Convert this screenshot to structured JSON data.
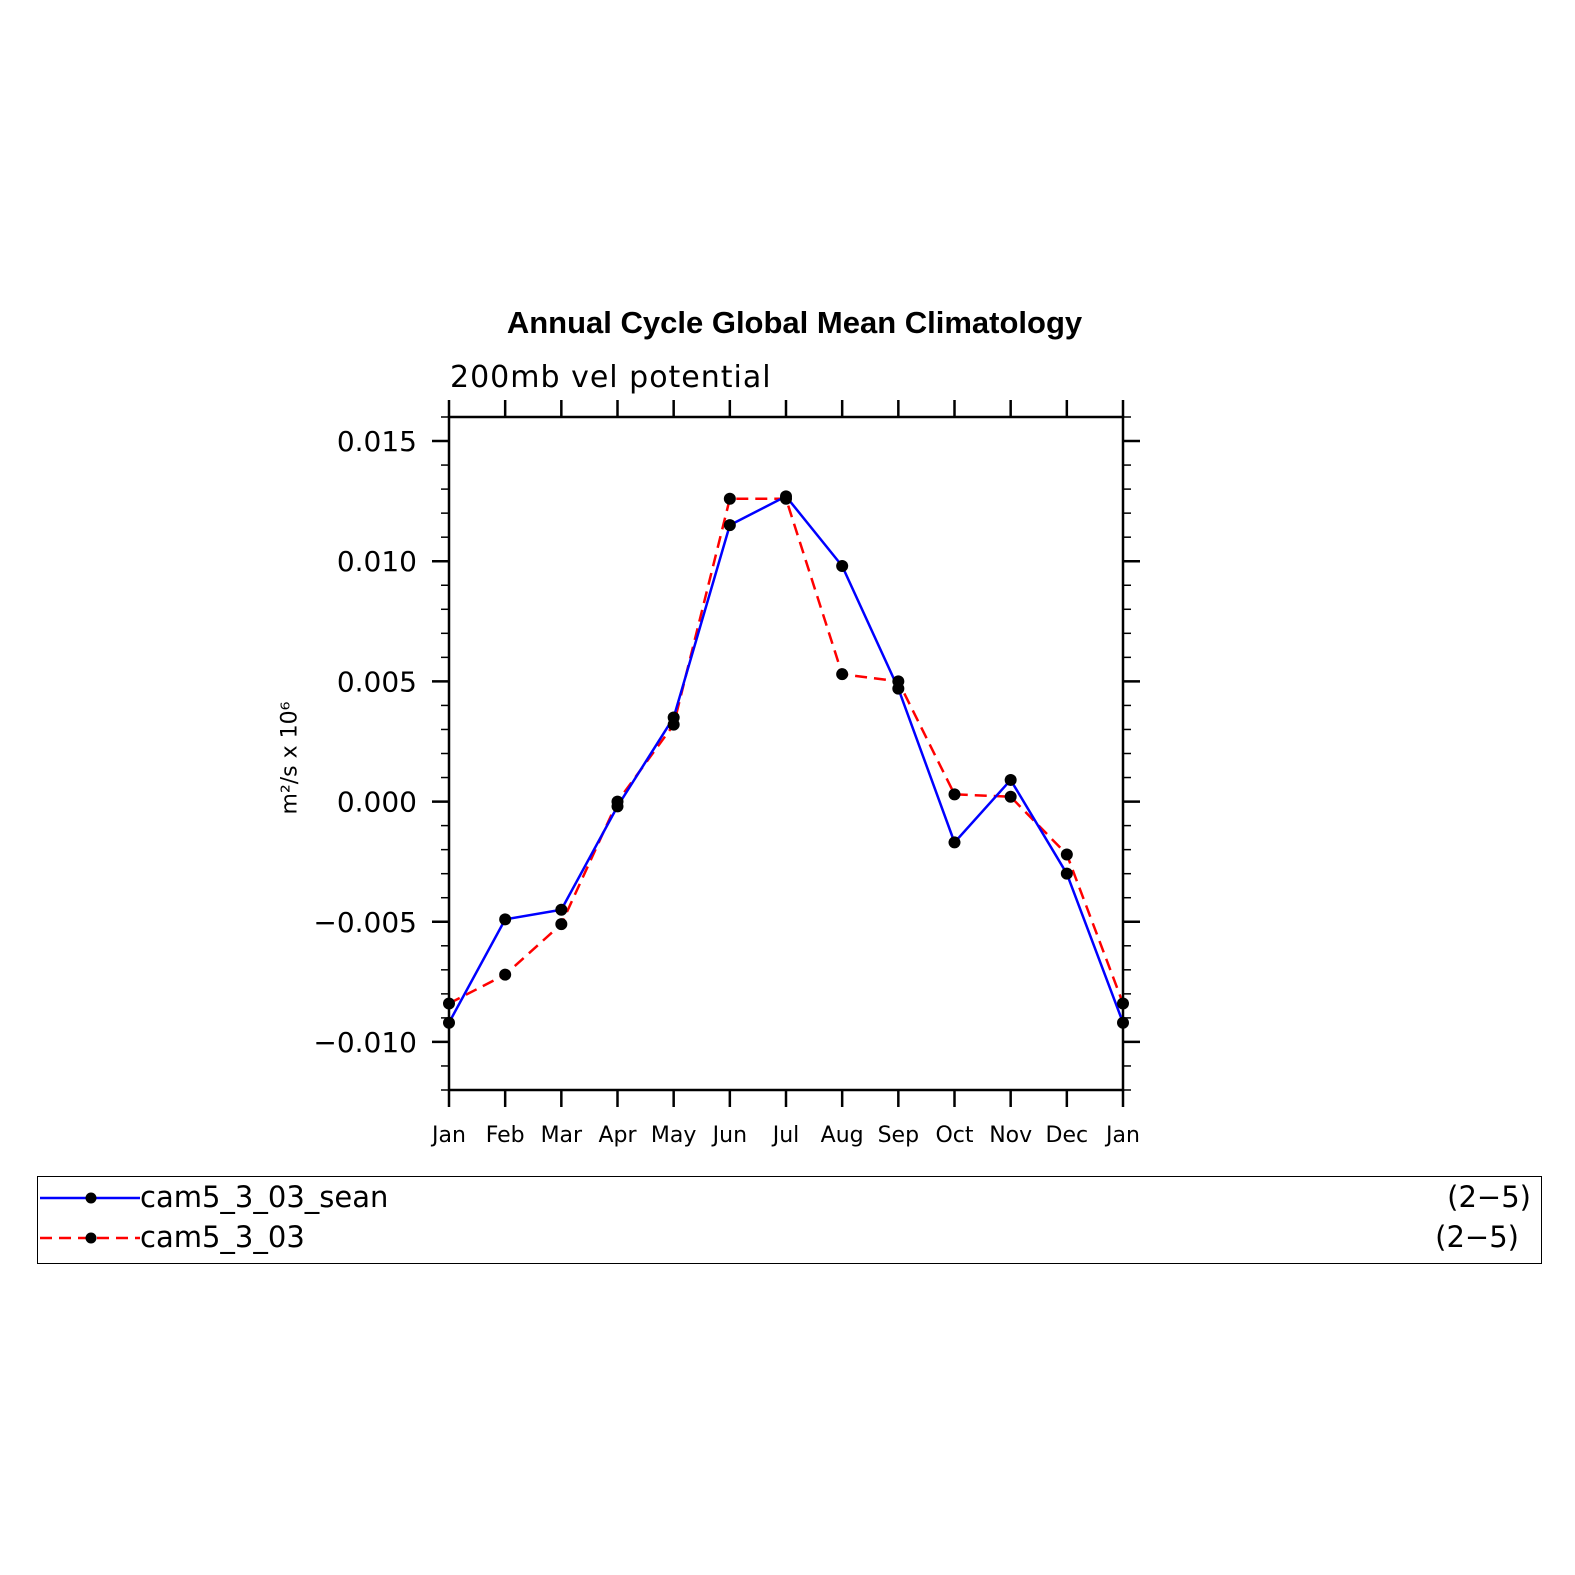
{
  "chart_data": {
    "type": "line",
    "title": "Annual Cycle Global Mean Climatology",
    "subtitle": "200mb vel potential",
    "ylabel": "m²/s x 10⁶",
    "xlabel": "",
    "categories": [
      "Jan",
      "Feb",
      "Mar",
      "Apr",
      "May",
      "Jun",
      "Jul",
      "Aug",
      "Sep",
      "Oct",
      "Nov",
      "Dec",
      "Jan"
    ],
    "ylim": [
      -0.012,
      0.016
    ],
    "yticks": [
      -0.01,
      -0.005,
      0.0,
      0.005,
      0.01,
      0.015
    ],
    "ytick_labels": [
      "−0.010",
      "−0.005",
      "0.000",
      "0.005",
      "0.010",
      "0.015"
    ],
    "series": [
      {
        "name": "cam5_3_03_sean",
        "range": "(2−5)",
        "color": "#0000ff",
        "dash": "solid",
        "values": [
          -0.0092,
          -0.0049,
          -0.0045,
          -0.0002,
          0.0035,
          0.0115,
          0.0127,
          0.0098,
          0.0047,
          -0.0017,
          0.0009,
          -0.003,
          -0.0092
        ]
      },
      {
        "name": "cam5_3_03",
        "range": "(2−5)",
        "color": "#ff0000",
        "dash": "dashed",
        "values": [
          -0.0084,
          -0.0072,
          -0.0051,
          0.0,
          0.0032,
          0.0126,
          0.0126,
          0.0053,
          0.005,
          0.0003,
          0.0002,
          -0.0022,
          -0.0084
        ]
      }
    ],
    "grid": false,
    "legend_position": "bottom"
  }
}
